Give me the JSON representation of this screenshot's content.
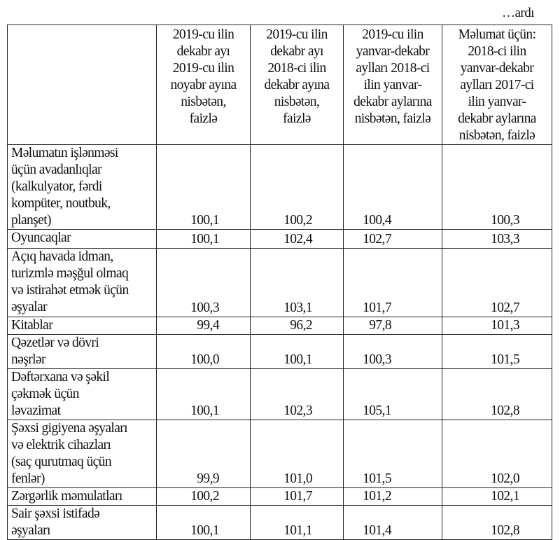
{
  "continuation": "…ardı",
  "headers": [
    "",
    "2019-cu ilin\ndekabr ayı\n2019-cu ilin\nnoyabr ayına\nnisbətən,\nfaizlə",
    "2019-cu ilin\ndekabr ayı\n2018-ci ilin\ndekabr ayına\nnisbətən,\nfaizlə",
    "2019-cu ilin\nyanvar-dekabr\naylları 2018-ci\nilin yanvar-\ndekabr aylarına\nnisbətən, faizlə",
    "Məlumat üçün:\n2018-ci ilin\nyanvar-dekabr\naylları 2017-ci\nilin yanvar-\ndekabr aylarına\nnisbətən, faizlə"
  ],
  "rows": [
    {
      "label": "Məlumatın işlənməsi\nüçün avadanlıqlar\n(kalkulyator, fərdi\nkompüter, noutbuk,\nplanşet)",
      "values": [
        "100,1",
        "100,2",
        "100,4",
        "100,3"
      ]
    },
    {
      "label": "Oyuncaqlar",
      "values": [
        "100,1",
        "102,4",
        "102,7",
        "103,3"
      ]
    },
    {
      "label": "Açıq havada idman,\nturizmlə məşğul olmaq\nvə istirahət etmək üçün\nəşyalar",
      "values": [
        "100,3",
        "103,1",
        "101,7",
        "102,7"
      ]
    },
    {
      "label": "Kitablar",
      "values": [
        "99,4",
        "96,2",
        "97,8",
        "101,3"
      ]
    },
    {
      "label": "Qəzetlər və dövri\nnəşrlər",
      "values": [
        "100,0",
        "100,1",
        "100,3",
        "101,5"
      ]
    },
    {
      "label": "Dəftərxana və şəkil\nçəkmək üçün\nləvazimat",
      "values": [
        "100,1",
        "102,3",
        "105,1",
        "102,8"
      ]
    },
    {
      "label": "Şəxsi gigiyena əşyaları\nvə elektrik cihazları\n(saç qurutmaq üçün\nfenlər)",
      "values": [
        "99,9",
        "101,0",
        "101,5",
        "102,0"
      ]
    },
    {
      "label": "Zərgərlik məmulatları",
      "values": [
        "100,2",
        "101,7",
        "101,2",
        "102,1"
      ]
    },
    {
      "label": "Sair şəxsi istifadə\nəşyaları",
      "values": [
        "100,1",
        "101,1",
        "101,4",
        "102,8"
      ]
    }
  ]
}
